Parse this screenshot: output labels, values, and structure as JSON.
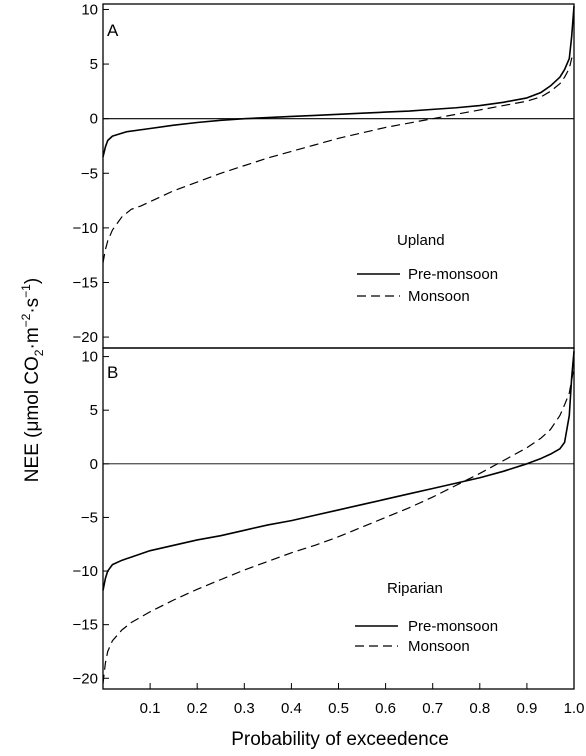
{
  "chart_data": [
    {
      "type": "line",
      "panel_label": "A",
      "legend_title": "Upland",
      "xlim": [
        0,
        1.0
      ],
      "ylim": [
        -21,
        10.5
      ],
      "yticks": [
        10,
        5,
        0,
        -5,
        -10,
        -15,
        -20
      ],
      "ytick_labels": [
        "10",
        "5",
        "0",
        "−5",
        "−10",
        "−15",
        "−20"
      ],
      "zero_line": true,
      "legend_position": "right",
      "series": [
        {
          "name": "Pre-monsoon",
          "style": "solid",
          "x": [
            0.0,
            0.005,
            0.01,
            0.02,
            0.05,
            0.1,
            0.15,
            0.2,
            0.25,
            0.3,
            0.35,
            0.4,
            0.45,
            0.5,
            0.55,
            0.6,
            0.65,
            0.7,
            0.75,
            0.8,
            0.85,
            0.9,
            0.93,
            0.95,
            0.97,
            0.98,
            0.99,
            0.995,
            1.0
          ],
          "y": [
            -3.5,
            -2.6,
            -2.0,
            -1.6,
            -1.2,
            -0.9,
            -0.6,
            -0.35,
            -0.15,
            0.0,
            0.1,
            0.2,
            0.3,
            0.4,
            0.5,
            0.6,
            0.7,
            0.85,
            1.0,
            1.2,
            1.5,
            1.9,
            2.4,
            3.0,
            3.8,
            4.5,
            5.5,
            7.5,
            10.3
          ]
        },
        {
          "name": "Monsoon",
          "style": "dashed",
          "x": [
            0.0,
            0.005,
            0.01,
            0.02,
            0.04,
            0.06,
            0.08,
            0.1,
            0.15,
            0.2,
            0.25,
            0.3,
            0.35,
            0.4,
            0.45,
            0.5,
            0.55,
            0.6,
            0.65,
            0.7,
            0.75,
            0.8,
            0.85,
            0.9,
            0.93,
            0.95,
            0.97,
            0.98,
            0.99,
            0.995,
            1.0
          ],
          "y": [
            -13.2,
            -12.0,
            -11.2,
            -10.2,
            -9.0,
            -8.3,
            -8.0,
            -7.6,
            -6.6,
            -5.8,
            -5.0,
            -4.3,
            -3.6,
            -3.0,
            -2.4,
            -1.8,
            -1.3,
            -0.8,
            -0.4,
            0.0,
            0.4,
            0.8,
            1.2,
            1.6,
            2.0,
            2.5,
            3.2,
            3.8,
            4.6,
            5.5,
            6.0
          ]
        }
      ]
    },
    {
      "type": "line",
      "panel_label": "B",
      "legend_title": "Riparian",
      "xlim": [
        0,
        1.0
      ],
      "ylim": [
        -21,
        10.8
      ],
      "xticks": [
        0.1,
        0.2,
        0.3,
        0.4,
        0.5,
        0.6,
        0.7,
        0.8,
        0.9,
        1.0
      ],
      "xtick_labels": [
        "0.1",
        "0.2",
        "0.3",
        "0.4",
        "0.5",
        "0.6",
        "0.7",
        "0.8",
        "0.9",
        "1.0"
      ],
      "yticks": [
        10,
        5,
        0,
        -5,
        -10,
        -15,
        -20
      ],
      "ytick_labels": [
        "10",
        "5",
        "0",
        "−5",
        "−10",
        "−15",
        "−20"
      ],
      "zero_line": true,
      "legend_position": "lower right",
      "series": [
        {
          "name": "Pre-monsoon",
          "style": "solid",
          "x": [
            0.0,
            0.005,
            0.01,
            0.02,
            0.04,
            0.06,
            0.08,
            0.1,
            0.15,
            0.2,
            0.25,
            0.3,
            0.35,
            0.4,
            0.45,
            0.5,
            0.55,
            0.6,
            0.65,
            0.7,
            0.75,
            0.8,
            0.85,
            0.9,
            0.93,
            0.95,
            0.97,
            0.98,
            0.99,
            0.995,
            1.0
          ],
          "y": [
            -11.8,
            -10.7,
            -10.0,
            -9.4,
            -9.0,
            -8.7,
            -8.4,
            -8.1,
            -7.6,
            -7.1,
            -6.7,
            -6.2,
            -5.7,
            -5.3,
            -4.8,
            -4.3,
            -3.8,
            -3.3,
            -2.8,
            -2.3,
            -1.8,
            -1.3,
            -0.7,
            0.0,
            0.5,
            0.9,
            1.4,
            2.0,
            4.5,
            8.0,
            10.5
          ]
        },
        {
          "name": "Monsoon",
          "style": "dashed",
          "x": [
            0.0,
            0.005,
            0.01,
            0.02,
            0.04,
            0.06,
            0.08,
            0.1,
            0.15,
            0.2,
            0.25,
            0.3,
            0.35,
            0.4,
            0.45,
            0.5,
            0.55,
            0.6,
            0.65,
            0.7,
            0.75,
            0.8,
            0.85,
            0.9,
            0.93,
            0.95,
            0.97,
            0.98,
            0.99,
            0.995,
            1.0
          ],
          "y": [
            -20.5,
            -18.6,
            -17.5,
            -16.5,
            -15.5,
            -14.8,
            -14.3,
            -13.8,
            -12.7,
            -11.7,
            -10.8,
            -9.9,
            -9.1,
            -8.3,
            -7.6,
            -6.8,
            -5.9,
            -5.0,
            -4.1,
            -3.1,
            -2.0,
            -0.9,
            0.3,
            1.5,
            2.4,
            3.2,
            4.5,
            5.5,
            6.6,
            7.8,
            9.0
          ]
        }
      ]
    }
  ],
  "axes": {
    "ylabel_main": "NEE (μmol CO",
    "ylabel_sub2": "2",
    "ylabel_mid": "·m",
    "ylabel_sup1": "−2",
    "ylabel_mid2": "·s",
    "ylabel_sup2": "−1",
    "ylabel_end": ")",
    "xlabel": "Probability of exceedence"
  }
}
